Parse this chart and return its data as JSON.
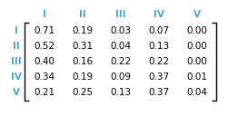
{
  "col_labels": [
    "I",
    "II",
    "III",
    "IV",
    "V"
  ],
  "row_labels": [
    "I",
    "II",
    "III",
    "IV",
    "V"
  ],
  "matrix": [
    [
      0.71,
      0.19,
      0.03,
      0.07,
      0.0
    ],
    [
      0.52,
      0.31,
      0.04,
      0.13,
      0.0
    ],
    [
      0.4,
      0.16,
      0.22,
      0.22,
      0.0
    ],
    [
      0.34,
      0.19,
      0.09,
      0.37,
      0.01
    ],
    [
      0.21,
      0.25,
      0.13,
      0.37,
      0.04
    ]
  ],
  "label_color": "#4FA3D1",
  "text_color": "#000000",
  "bracket_color": "#000000",
  "bg_color": "#ffffff",
  "fontsize": 7.5,
  "label_fontsize": 7.5
}
